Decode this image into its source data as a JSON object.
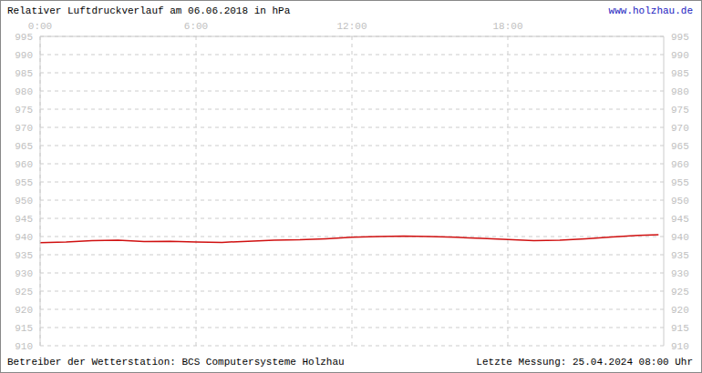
{
  "chart_data": {
    "type": "line",
    "title": "Relativer Luftdruckverlauf am 06.06.2018 in hPa",
    "annotations": [
      "www.holzhau.de",
      "Betreiber der Wetterstation: BCS Computersysteme Holzhau",
      "Letzte Messung: 25.04.2024 08:00 Uhr"
    ],
    "x": [
      0,
      1,
      2,
      3,
      4,
      5,
      6,
      7,
      8,
      9,
      10,
      11,
      12,
      13,
      14,
      15,
      16,
      17,
      18,
      19,
      20,
      21,
      22,
      23,
      23.8
    ],
    "values": [
      938.3,
      938.5,
      938.9,
      939.0,
      938.6,
      938.7,
      938.5,
      938.4,
      938.7,
      939.0,
      939.1,
      939.4,
      939.8,
      940.0,
      940.1,
      940.0,
      939.8,
      939.5,
      939.2,
      938.9,
      939.0,
      939.4,
      939.9,
      940.3,
      940.5
    ],
    "color": "#d01010",
    "xlim": [
      0,
      24
    ],
    "xticks": [
      {
        "value": 0,
        "label": "0:00"
      },
      {
        "value": 6,
        "label": "6:00"
      },
      {
        "value": 12,
        "label": "12:00"
      },
      {
        "value": 18,
        "label": "18:00"
      }
    ],
    "ylim": [
      910,
      995
    ],
    "yticks": [
      910,
      915,
      920,
      925,
      930,
      935,
      940,
      945,
      950,
      955,
      960,
      965,
      970,
      975,
      980,
      985,
      990,
      995
    ],
    "grid": true
  }
}
